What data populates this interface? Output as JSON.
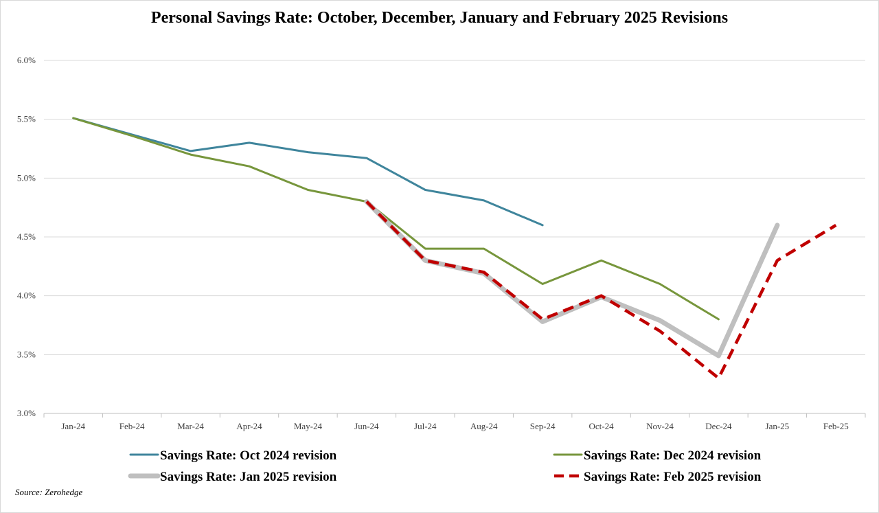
{
  "chart_data": {
    "type": "line",
    "title": "Personal Savings Rate: October, December, January and February 2025 Revisions",
    "categories": [
      "Jan-24",
      "Feb-24",
      "Mar-24",
      "Apr-24",
      "May-24",
      "Jun-24",
      "Jul-24",
      "Aug-24",
      "Sep-24",
      "Oct-24",
      "Nov-24",
      "Dec-24",
      "Jan-25",
      "Feb-25"
    ],
    "ylim": [
      3.0,
      6.0
    ],
    "yticks": [
      {
        "value": 3.0,
        "label": "3.0%"
      },
      {
        "value": 3.5,
        "label": "3.5%"
      },
      {
        "value": 4.0,
        "label": "4.0%"
      },
      {
        "value": 4.5,
        "label": "4.5%"
      },
      {
        "value": 5.0,
        "label": "5.0%"
      },
      {
        "value": 5.5,
        "label": "5.5%"
      },
      {
        "value": 6.0,
        "label": "6.0%"
      }
    ],
    "grid": true,
    "legend_position": "bottom",
    "series": [
      {
        "name": "Savings Rate: Oct 2024 revision",
        "color": "#3f859c",
        "style": "solid",
        "values": [
          5.51,
          5.37,
          5.23,
          5.3,
          5.22,
          5.17,
          4.9,
          4.81,
          4.6,
          null,
          null,
          null,
          null,
          null
        ]
      },
      {
        "name": "Savings Rate: Dec 2024 revision",
        "color": "#77963c",
        "style": "solid",
        "values": [
          5.51,
          5.36,
          5.2,
          5.1,
          4.9,
          4.8,
          4.4,
          4.4,
          4.1,
          4.3,
          4.1,
          3.8,
          null,
          null
        ]
      },
      {
        "name": "Savings Rate: Jan 2025 revision",
        "color": "#bfbfbf",
        "style": "thick",
        "values": [
          null,
          null,
          null,
          null,
          null,
          4.8,
          4.3,
          4.19,
          3.78,
          3.99,
          3.79,
          3.49,
          4.6,
          null
        ]
      },
      {
        "name": "Savings Rate: Feb 2025 revision",
        "color": "#c00000",
        "style": "dashed",
        "values": [
          null,
          null,
          null,
          null,
          null,
          4.8,
          4.3,
          4.2,
          3.8,
          4.0,
          3.7,
          3.3,
          4.3,
          4.6
        ]
      }
    ],
    "source": "Source: Zerohedge"
  }
}
